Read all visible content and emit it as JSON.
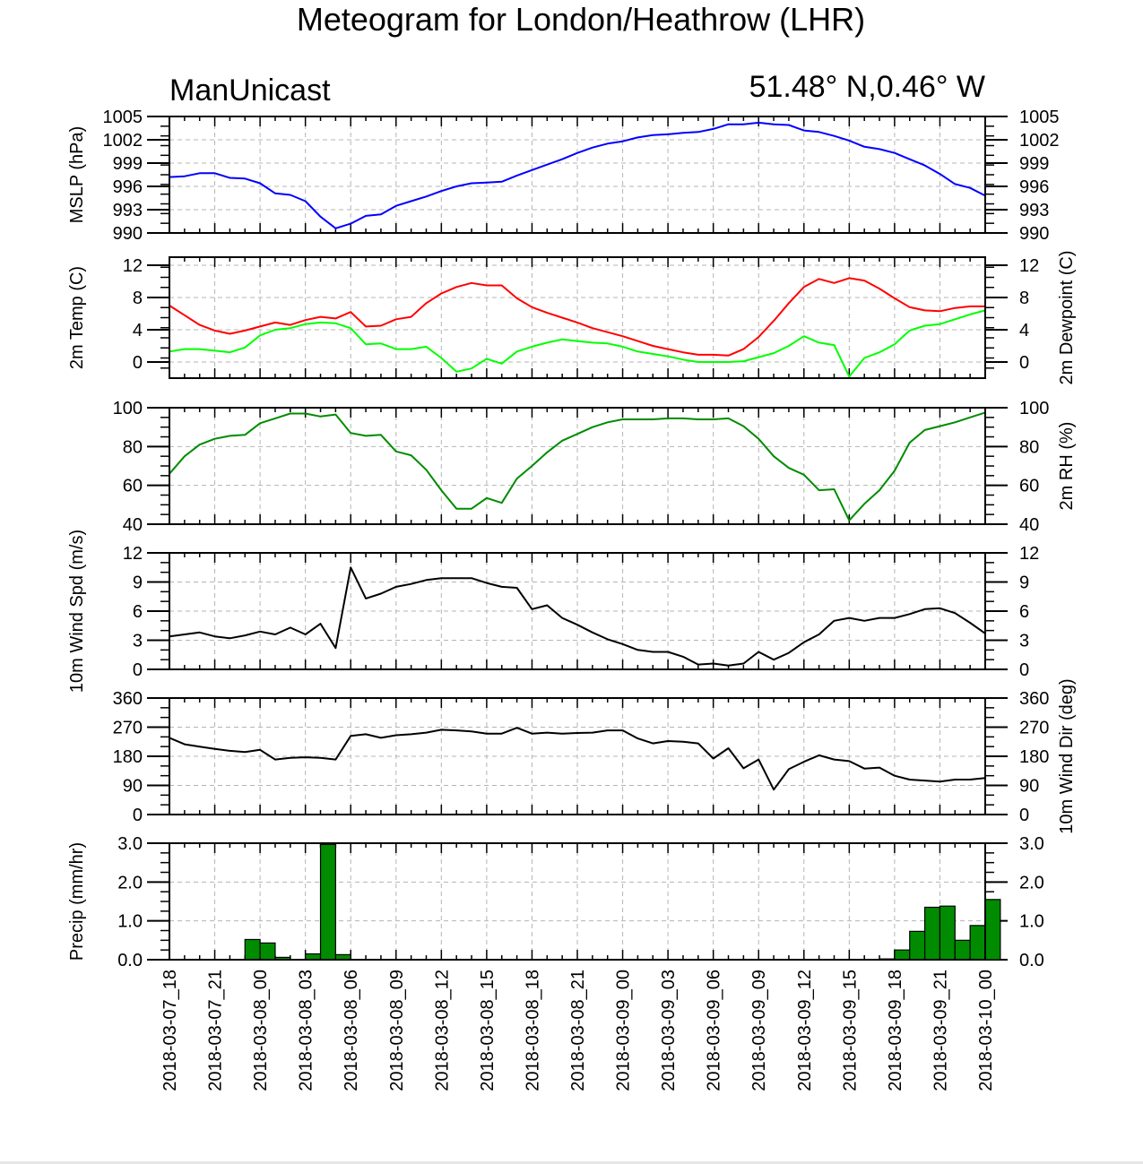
{
  "title": "Meteogram for London/Heathrow (LHR)",
  "model": "ManUnicast",
  "location": "51.48° N,0.46° W",
  "chart_data": [
    {
      "type": "line",
      "ylabel": "MSLP (hPa)",
      "ylabel_right": "",
      "ylim": [
        990,
        1005
      ],
      "yticks": [
        "990",
        "993",
        "996",
        "999",
        "1002",
        "1005"
      ],
      "right_ticks": true,
      "series": [
        {
          "color": "#0000ff",
          "values": [
            997.2,
            997.3,
            997.7,
            997.7,
            997.1,
            997.0,
            996.4,
            995.1,
            994.9,
            994.1,
            992.1,
            990.6,
            991.2,
            992.2,
            992.4,
            993.5,
            994.1,
            994.7,
            995.4,
            996.0,
            996.4,
            996.5,
            996.6,
            997.4,
            998.1,
            998.8,
            999.5,
            1000.3,
            1001.0,
            1001.5,
            1001.8,
            1002.3,
            1002.6,
            1002.7,
            1002.9,
            1003.0,
            1003.4,
            1004.0,
            1004.0,
            1004.2,
            1004.0,
            1003.9,
            1003.2,
            1003.0,
            1002.5,
            1001.9,
            1001.1,
            1000.8,
            1000.3,
            999.5,
            998.7,
            997.6,
            996.3,
            995.8,
            994.8
          ]
        }
      ]
    },
    {
      "type": "line",
      "ylabel": "2m Temp (C)",
      "ylabel_right": "2m Dewpoint (C)",
      "ylim": [
        -2,
        13
      ],
      "yticks": [
        "0",
        "4",
        "8",
        "12"
      ],
      "right_ticks": true,
      "series": [
        {
          "color": "#ff0000",
          "values": [
            7.0,
            5.8,
            4.6,
            3.9,
            3.5,
            3.9,
            4.4,
            4.9,
            4.6,
            5.2,
            5.6,
            5.4,
            6.2,
            4.4,
            4.5,
            5.3,
            5.6,
            7.3,
            8.5,
            9.3,
            9.8,
            9.5,
            9.5,
            7.9,
            6.8,
            6.1,
            5.5,
            4.9,
            4.2,
            3.7,
            3.2,
            2.6,
            2.0,
            1.6,
            1.2,
            0.9,
            0.9,
            0.8,
            1.6,
            3.1,
            5.1,
            7.3,
            9.3,
            10.3,
            9.8,
            10.4,
            10.1,
            9.1,
            7.9,
            6.8,
            6.4,
            6.3,
            6.7,
            6.9,
            6.9
          ]
        },
        {
          "color": "#00ff00",
          "values": [
            1.3,
            1.6,
            1.6,
            1.4,
            1.2,
            1.8,
            3.3,
            4.0,
            4.2,
            4.7,
            4.9,
            4.8,
            4.2,
            2.2,
            2.3,
            1.6,
            1.6,
            1.9,
            0.5,
            -1.2,
            -0.8,
            0.4,
            -0.2,
            1.3,
            1.9,
            2.4,
            2.8,
            2.6,
            2.4,
            2.3,
            1.9,
            1.3,
            1.0,
            0.7,
            0.3,
            0.0,
            0.0,
            0.0,
            0.1,
            0.6,
            1.1,
            2.0,
            3.2,
            2.4,
            2.1,
            -1.8,
            0.5,
            1.2,
            2.2,
            3.9,
            4.5,
            4.7,
            5.3,
            5.9,
            6.4
          ]
        }
      ]
    },
    {
      "type": "line",
      "ylabel": "",
      "ylabel_right": "2m RH (%)",
      "ylim": [
        40,
        100
      ],
      "yticks": [
        "40",
        "60",
        "80",
        "100"
      ],
      "right_ticks": true,
      "series": [
        {
          "color": "#008b00",
          "values": [
            66.0,
            75.0,
            81.0,
            84.0,
            85.5,
            86.0,
            92.0,
            94.5,
            97.0,
            97.0,
            95.5,
            96.5,
            87.0,
            85.5,
            86.0,
            77.5,
            75.5,
            68.0,
            57.5,
            48.0,
            48.0,
            53.5,
            51.0,
            63.5,
            70.0,
            77.0,
            83.0,
            86.5,
            90.0,
            92.5,
            94.0,
            94.0,
            94.0,
            94.5,
            94.5,
            94.0,
            94.0,
            94.5,
            90.5,
            84.0,
            75.0,
            69.0,
            65.5,
            57.5,
            58.0,
            42.0,
            50.5,
            57.5,
            67.5,
            82.0,
            88.5,
            90.5,
            92.5,
            95.0,
            97.5
          ]
        }
      ]
    },
    {
      "type": "line",
      "ylabel": "10m Wind Spd (m/s)",
      "ylabel_right": "",
      "ylim": [
        0,
        12
      ],
      "yticks": [
        "0",
        "3",
        "6",
        "9",
        "12"
      ],
      "right_ticks": true,
      "series": [
        {
          "color": "#000000",
          "values": [
            3.4,
            3.6,
            3.8,
            3.4,
            3.2,
            3.5,
            3.9,
            3.6,
            4.3,
            3.6,
            4.7,
            2.2,
            10.5,
            7.3,
            7.8,
            8.5,
            8.8,
            9.2,
            9.4,
            9.4,
            9.4,
            8.9,
            8.5,
            8.4,
            6.2,
            6.6,
            5.3,
            4.6,
            3.8,
            3.1,
            2.6,
            2.0,
            1.8,
            1.8,
            1.3,
            0.5,
            0.6,
            0.4,
            0.6,
            1.8,
            1.0,
            1.7,
            2.8,
            3.6,
            5.0,
            5.3,
            5.0,
            5.3,
            5.3,
            5.7,
            6.2,
            6.3,
            5.8,
            4.8,
            3.7
          ]
        }
      ]
    },
    {
      "type": "line",
      "ylabel": "",
      "ylabel_right": "10m Wind Dir (deg)",
      "ylim": [
        0,
        360
      ],
      "yticks": [
        "0",
        "90",
        "180",
        "270",
        "360"
      ],
      "right_ticks": true,
      "series": [
        {
          "color": "#000000",
          "values": [
            237,
            217,
            210,
            203,
            197,
            193,
            200,
            170,
            175,
            177,
            175,
            170,
            243,
            248,
            237,
            245,
            248,
            253,
            262,
            260,
            257,
            250,
            250,
            268,
            250,
            253,
            250,
            252,
            253,
            260,
            260,
            235,
            220,
            227,
            225,
            220,
            173,
            205,
            143,
            170,
            77,
            140,
            163,
            183,
            170,
            165,
            142,
            145,
            120,
            108,
            105,
            102,
            108,
            108,
            113
          ]
        }
      ]
    },
    {
      "type": "bar",
      "ylabel": "Precip (mm/hr)",
      "ylabel_right": "",
      "ylim": [
        0,
        3
      ],
      "yticks": [
        "0.0",
        "1.0",
        "2.0",
        "3.0"
      ],
      "right_ticks": true,
      "series": [
        {
          "color": "#008b00",
          "values": [
            0,
            0,
            0,
            0,
            0,
            0.52,
            0.43,
            0.06,
            0,
            0.15,
            2.97,
            0.13,
            0,
            0,
            0,
            0,
            0,
            0,
            0,
            0,
            0,
            0,
            0,
            0,
            0,
            0,
            0,
            0,
            0,
            0,
            0,
            0,
            0,
            0,
            0,
            0,
            0,
            0,
            0,
            0,
            0,
            0,
            0,
            0,
            0,
            0,
            0,
            0.02,
            0.25,
            0.73,
            1.35,
            1.38,
            0.5,
            0.88,
            1.55
          ]
        }
      ]
    }
  ],
  "x_axis": {
    "hours": 54,
    "tick_labels": [
      "2018-03-07_18",
      "2018-03-07_21",
      "2018-03-08_00",
      "2018-03-08_03",
      "2018-03-08_06",
      "2018-03-08_09",
      "2018-03-08_12",
      "2018-03-08_15",
      "2018-03-08_18",
      "2018-03-08_21",
      "2018-03-09_00",
      "2018-03-09_03",
      "2018-03-09_06",
      "2018-03-09_09",
      "2018-03-09_12",
      "2018-03-09_15",
      "2018-03-09_18",
      "2018-03-09_21",
      "2018-03-10_00"
    ],
    "grid": "dashed"
  }
}
